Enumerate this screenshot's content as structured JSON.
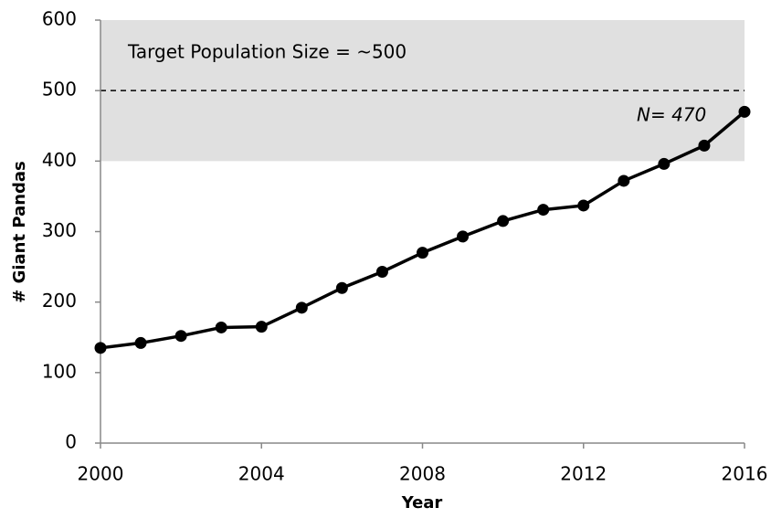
{
  "chart_data": {
    "type": "line",
    "x": [
      2000,
      2001,
      2002,
      2003,
      2004,
      2005,
      2006,
      2007,
      2008,
      2009,
      2010,
      2011,
      2012,
      2013,
      2014,
      2015,
      2016
    ],
    "values": [
      135,
      142,
      152,
      164,
      165,
      192,
      220,
      243,
      270,
      293,
      315,
      331,
      337,
      372,
      396,
      422,
      470
    ],
    "color": "#000000",
    "xlabel": "Year",
    "ylabel": "# Giant Pandas",
    "xlim": [
      2000,
      2016
    ],
    "xticks": [
      2000,
      2004,
      2008,
      2012,
      2016
    ],
    "ylim": [
      0,
      600
    ],
    "yticks": [
      0,
      100,
      200,
      300,
      400,
      500,
      600
    ],
    "grid": false,
    "target_band": [
      400,
      600
    ],
    "band_color": "#e0e0e0",
    "target_line": 500,
    "annotations": [
      "Target Population Size = ~500",
      "N= 470"
    ]
  }
}
